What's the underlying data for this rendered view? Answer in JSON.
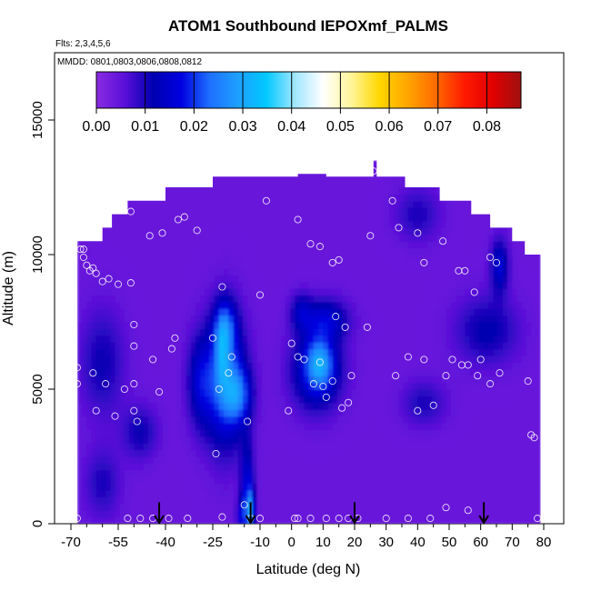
{
  "chart_data": {
    "type": "heatmap",
    "title": "ATOM1 Southbound IEPOXmf_PALMS",
    "flights_note": "Flts: 2,3,4,5,6",
    "dates_note": "MMDD: 0801,0803,0806,0808,0812",
    "xlabel": "Latitude (deg N)",
    "ylabel": "Altitude (m)",
    "xlim": [
      -70,
      80
    ],
    "ylim": [
      0,
      17500
    ],
    "x_ticks": [
      -70,
      -55,
      -40,
      -25,
      -10,
      0,
      10,
      20,
      30,
      40,
      50,
      60,
      70,
      80
    ],
    "x_tick_labels": [
      "-70",
      "-55",
      "-40",
      "-25",
      "-10",
      "0",
      "10",
      "20",
      "30",
      "40",
      "50",
      "60",
      "70",
      "80"
    ],
    "x_minor_ticks": [
      -65,
      -60,
      -50,
      -45,
      -35,
      -30,
      -20,
      -15,
      -5,
      5,
      15,
      25,
      35,
      45,
      55,
      65,
      75
    ],
    "y_ticks": [
      0,
      5000,
      10000,
      15000
    ],
    "y_tick_labels": [
      "0",
      "5000",
      "10000",
      "15000"
    ],
    "colorbar": {
      "min": 0.0,
      "max": 0.087,
      "ticks": [
        0.0,
        0.01,
        0.02,
        0.03,
        0.04,
        0.05,
        0.06,
        0.07,
        0.08
      ],
      "tick_labels": [
        "0.00",
        "0.01",
        "0.02",
        "0.03",
        "0.04",
        "0.05",
        "0.06",
        "0.07",
        "0.08"
      ],
      "colors": [
        "#8a2be2",
        "#5a0fd8",
        "#0000b0",
        "#0000e0",
        "#1e6fff",
        "#1ea0ff",
        "#00c8ff",
        "#9fe6ff",
        "#ffffff",
        "#fff59a",
        "#ffd700",
        "#ffa500",
        "#ff6a00",
        "#ff1a00",
        "#e00000",
        "#a01010"
      ]
    },
    "background_value": 0.004,
    "envelope": [
      [
        -68,
        0
      ],
      [
        -68,
        10500
      ],
      [
        -60,
        10500
      ],
      [
        -60,
        11000
      ],
      [
        -57,
        11000
      ],
      [
        -57,
        11500
      ],
      [
        -52,
        11500
      ],
      [
        -52,
        12000
      ],
      [
        -40,
        12000
      ],
      [
        -40,
        12500
      ],
      [
        -25,
        12500
      ],
      [
        -25,
        12900
      ],
      [
        2,
        12900
      ],
      [
        2,
        13000
      ],
      [
        11,
        13000
      ],
      [
        11,
        12900
      ],
      [
        26,
        12900
      ],
      [
        26,
        13500
      ],
      [
        27,
        13500
      ],
      [
        27,
        12900
      ],
      [
        36,
        12900
      ],
      [
        36,
        12500
      ],
      [
        47,
        12500
      ],
      [
        47,
        12000
      ],
      [
        57,
        12000
      ],
      [
        57,
        11500
      ],
      [
        63,
        11500
      ],
      [
        63,
        11000
      ],
      [
        70,
        11000
      ],
      [
        70,
        10500
      ],
      [
        74,
        10500
      ],
      [
        74,
        10000
      ],
      [
        79,
        10000
      ],
      [
        79,
        0
      ]
    ],
    "blobs": [
      {
        "x": -21,
        "y": 5300,
        "sx": 4.5,
        "sy": 1700,
        "value": 0.019
      },
      {
        "x": -21,
        "y": 7400,
        "sx": 2.5,
        "sy": 700,
        "value": 0.012
      },
      {
        "x": -17,
        "y": 4800,
        "sx": 3.0,
        "sy": 700,
        "value": 0.013
      },
      {
        "x": -29,
        "y": 5300,
        "sx": 3.0,
        "sy": 1200,
        "value": 0.01
      },
      {
        "x": -22,
        "y": 6400,
        "sx": 1.5,
        "sy": 900,
        "value": 0.01
      },
      {
        "x": 8,
        "y": 5700,
        "sx": 5.5,
        "sy": 1000,
        "value": 0.015
      },
      {
        "x": 9,
        "y": 6000,
        "sx": 2.8,
        "sy": 600,
        "value": 0.014
      },
      {
        "x": 11,
        "y": 7600,
        "sx": 5.0,
        "sy": 550,
        "value": 0.011
      },
      {
        "x": 3,
        "y": 7900,
        "sx": 2.5,
        "sy": 500,
        "value": 0.008
      },
      {
        "x": -14,
        "y": 1200,
        "sx": 1.5,
        "sy": 1300,
        "value": 0.013
      },
      {
        "x": -13,
        "y": 500,
        "sx": 1.0,
        "sy": 500,
        "value": 0.016
      },
      {
        "x": -16,
        "y": 300,
        "sx": 1.0,
        "sy": 450,
        "value": 0.01
      },
      {
        "x": 66,
        "y": 9600,
        "sx": 2.0,
        "sy": 700,
        "value": 0.012
      },
      {
        "x": 62,
        "y": 7200,
        "sx": 7.0,
        "sy": 900,
        "value": 0.008
      },
      {
        "x": -60,
        "y": 6000,
        "sx": 5.0,
        "sy": 1400,
        "value": 0.007
      },
      {
        "x": -48,
        "y": 3400,
        "sx": 4.0,
        "sy": 700,
        "value": 0.007
      },
      {
        "x": 40,
        "y": 11500,
        "sx": 5.0,
        "sy": 700,
        "value": 0.006
      },
      {
        "x": 42,
        "y": 4500,
        "sx": 5.0,
        "sy": 600,
        "value": 0.006
      },
      {
        "x": -60,
        "y": 1500,
        "sx": 4.0,
        "sy": 900,
        "value": 0.006
      }
    ],
    "samples": [
      [
        -68,
        200
      ],
      [
        -68,
        5200
      ],
      [
        -68,
        5800
      ],
      [
        -67,
        10200
      ],
      [
        -66,
        10200
      ],
      [
        -66,
        9900
      ],
      [
        -65,
        9600
      ],
      [
        -64,
        9400
      ],
      [
        -63,
        9500
      ],
      [
        -62,
        9300
      ],
      [
        -60,
        9000
      ],
      [
        -58,
        9100
      ],
      [
        -55,
        8900
      ],
      [
        -51,
        8950
      ],
      [
        -50,
        7400
      ],
      [
        -50,
        6600
      ],
      [
        -50,
        5200
      ],
      [
        -49,
        3800
      ],
      [
        -48,
        200
      ],
      [
        -52,
        200
      ],
      [
        -45,
        10700
      ],
      [
        -41,
        10800
      ],
      [
        -36,
        11300
      ],
      [
        -34,
        11400
      ],
      [
        -30,
        10900
      ],
      [
        -51,
        11600
      ],
      [
        -50,
        4200
      ],
      [
        -53,
        5000
      ],
      [
        -56,
        4000
      ],
      [
        -62,
        4200
      ],
      [
        -63,
        5600
      ],
      [
        -59,
        5200
      ],
      [
        -44,
        6100
      ],
      [
        -42,
        4900
      ],
      [
        -38,
        6500
      ],
      [
        -37,
        6900
      ],
      [
        -22,
        8800
      ],
      [
        -25,
        6900
      ],
      [
        -23,
        5000
      ],
      [
        -20,
        5600
      ],
      [
        -19,
        6200
      ],
      [
        -14,
        3800
      ],
      [
        -13,
        200
      ],
      [
        -15,
        700
      ],
      [
        -10,
        200
      ],
      [
        -24,
        2600
      ],
      [
        -22,
        250
      ],
      [
        -10,
        8500
      ],
      [
        -8,
        12000
      ],
      [
        2,
        11300
      ],
      [
        6,
        10400
      ],
      [
        9,
        10300
      ],
      [
        13,
        9700
      ],
      [
        15,
        9800
      ],
      [
        14,
        7700
      ],
      [
        17,
        7300
      ],
      [
        24,
        7300
      ],
      [
        25,
        10700
      ],
      [
        26,
        13100
      ],
      [
        32,
        12000
      ],
      [
        34,
        11000
      ],
      [
        40,
        10800
      ],
      [
        42,
        9700
      ],
      [
        48,
        10500
      ],
      [
        53,
        9400
      ],
      [
        55,
        9400
      ],
      [
        58,
        8600
      ],
      [
        63,
        9900
      ],
      [
        65,
        9700
      ],
      [
        2,
        6200
      ],
      [
        4,
        6100
      ],
      [
        9,
        6000
      ],
      [
        10,
        5100
      ],
      [
        7,
        5200
      ],
      [
        11,
        4700
      ],
      [
        13,
        5300
      ],
      [
        16,
        4300
      ],
      [
        18,
        4500
      ],
      [
        19,
        5500
      ],
      [
        0,
        6700
      ],
      [
        -1,
        4200
      ],
      [
        1,
        200
      ],
      [
        2,
        200
      ],
      [
        6,
        200
      ],
      [
        11,
        200
      ],
      [
        15,
        200
      ],
      [
        18,
        200
      ],
      [
        21,
        200
      ],
      [
        30,
        200
      ],
      [
        33,
        5500
      ],
      [
        37,
        6200
      ],
      [
        40,
        4200
      ],
      [
        42,
        6100
      ],
      [
        45,
        4400
      ],
      [
        49,
        5500
      ],
      [
        51,
        6100
      ],
      [
        54,
        5900
      ],
      [
        56,
        5900
      ],
      [
        60,
        6100
      ],
      [
        63,
        5200
      ],
      [
        66,
        5600
      ],
      [
        75,
        5300
      ],
      [
        76,
        3300
      ],
      [
        77,
        3200
      ],
      [
        78,
        200
      ],
      [
        59,
        5500
      ],
      [
        49,
        600
      ],
      [
        56,
        500
      ],
      [
        44,
        200
      ],
      [
        37,
        200
      ],
      [
        -33,
        200
      ],
      [
        -44,
        200
      ],
      [
        -39,
        200
      ]
    ],
    "arrows_x": [
      -42,
      -13,
      20,
      61
    ]
  }
}
